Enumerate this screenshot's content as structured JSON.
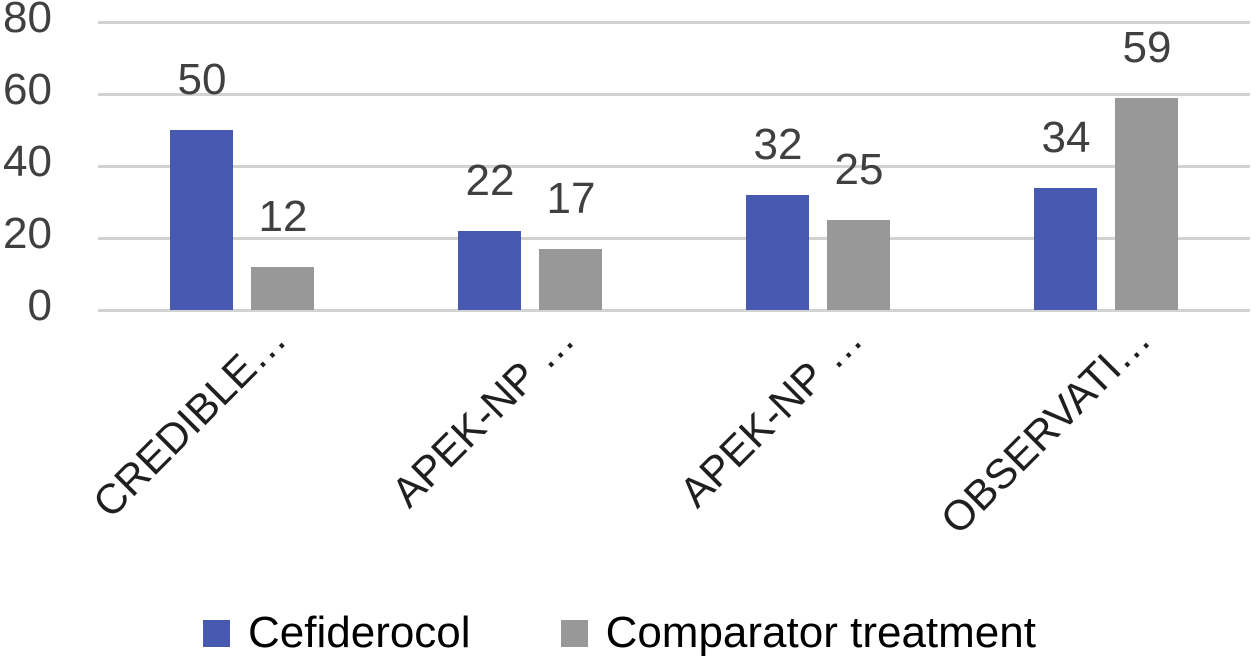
{
  "chart_data": {
    "type": "bar",
    "title": "",
    "categories": [
      "CREDIBLE…",
      "APEK-NP …",
      "APEK-NP …",
      "OBSERVATI…"
    ],
    "series": [
      {
        "name": "Cefiderocol",
        "color": "#4859b2",
        "values": [
          50,
          22,
          32,
          34
        ]
      },
      {
        "name": "Comparator treatment",
        "color": "#989898",
        "values": [
          12,
          17,
          25,
          59
        ]
      }
    ],
    "y_axis": {
      "min": 0,
      "max": 80,
      "ticks": [
        0,
        20,
        40,
        60,
        80
      ]
    },
    "grid": true,
    "value_labels": true,
    "legend_position": "bottom"
  },
  "colors": {
    "background": "#ffffff",
    "grid": "#d2d2d2",
    "axis_text": "#404040",
    "value_text": "#404040",
    "category_text": "#1f1f1f",
    "legend_text": "#000000"
  }
}
